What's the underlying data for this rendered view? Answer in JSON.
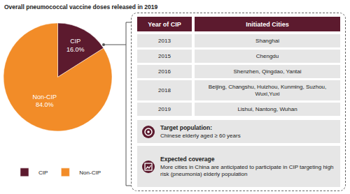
{
  "chart_data": {
    "type": "pie",
    "title": "Overall pneumococcal vaccine doses released in 2019",
    "categories": [
      "CIP",
      "Non-CIP"
    ],
    "values": [
      16.0,
      84.0
    ],
    "value_labels": [
      "16.0%",
      "84.0%"
    ],
    "colors": [
      "#5c1a2e",
      "#f28c28"
    ],
    "data_labels": true,
    "legend": "bottom"
  },
  "panel": {
    "table": {
      "header": [
        "Year of  CIP",
        "Initiated Cities"
      ],
      "rows": [
        [
          "2013",
          "Shanghai"
        ],
        [
          "2015",
          "Chengdu"
        ],
        [
          "2016",
          "Shenzhen, Qingdao, Yantai"
        ],
        [
          "2018",
          "Beijing, Changshu, Huizhou, Kunming, Suzhou, Wuxi,Yuxi"
        ],
        [
          "2019",
          "Lishui, Nantong, Wuhan"
        ]
      ]
    },
    "boxes": [
      {
        "title": "Target population:",
        "text": "Chinese elderly aged ≥ 60 years"
      },
      {
        "title": "Expected coverage",
        "text": "More cities in China are anticipated to participate in CIP targeting high risk (pneumonia) elderly population"
      }
    ]
  }
}
